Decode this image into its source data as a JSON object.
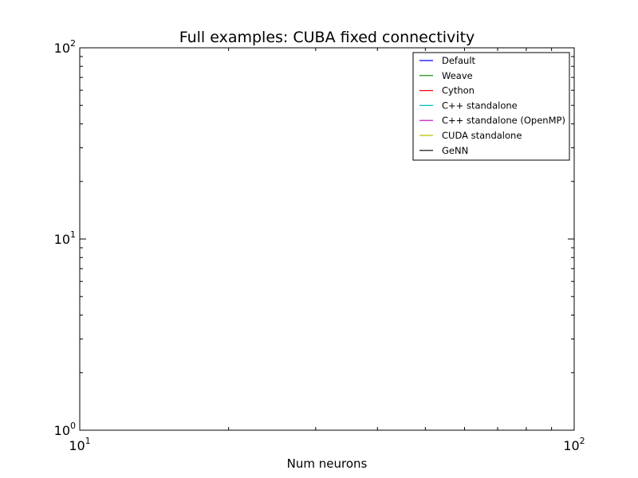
{
  "chart_data": {
    "type": "line",
    "title": "Full examples: CUBA fixed connectivity",
    "xlabel": "Num neurons",
    "ylabel": "",
    "xscale": "log",
    "yscale": "log",
    "xlim": [
      10,
      100
    ],
    "ylim": [
      1,
      100
    ],
    "x_major_ticks": [
      {
        "value": 10,
        "base": "10",
        "exp": "1"
      },
      {
        "value": 100,
        "base": "10",
        "exp": "2"
      }
    ],
    "y_major_ticks": [
      {
        "value": 1,
        "base": "10",
        "exp": "0"
      },
      {
        "value": 10,
        "base": "10",
        "exp": "1"
      },
      {
        "value": 100,
        "base": "10",
        "exp": "2"
      }
    ],
    "grid": false,
    "legend_position": "top-right",
    "series": [
      {
        "name": "Default",
        "color": "#0000ff",
        "x": [],
        "y": []
      },
      {
        "name": "Weave",
        "color": "#008000",
        "x": [],
        "y": []
      },
      {
        "name": "Cython",
        "color": "#ff0000",
        "x": [],
        "y": []
      },
      {
        "name": "C++ standalone",
        "color": "#00bfbf",
        "x": [],
        "y": []
      },
      {
        "name": "C++ standalone (OpenMP)",
        "color": "#bf00bf",
        "x": [],
        "y": []
      },
      {
        "name": "CUDA standalone",
        "color": "#bfbf00",
        "x": [],
        "y": []
      },
      {
        "name": "GeNN",
        "color": "#000000",
        "x": [],
        "y": []
      }
    ]
  }
}
